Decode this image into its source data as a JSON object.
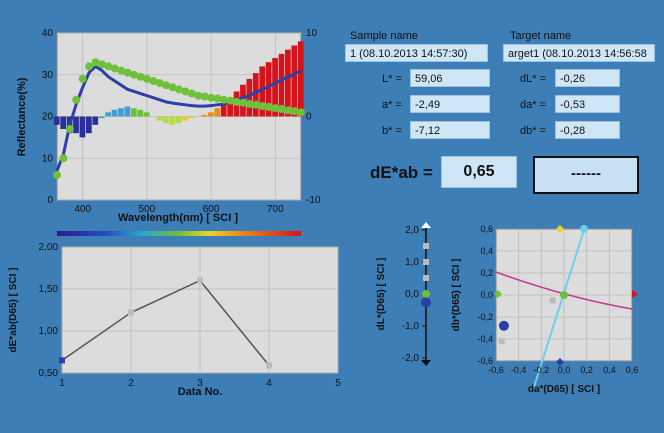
{
  "sample": {
    "name_label": "Sample name",
    "name_value": "1 (08.10.2013 14:57:30)"
  },
  "target": {
    "name_label": "Target name",
    "name_value": "arget1 (08.10.2013 14:56:58"
  },
  "metrics": [
    {
      "label": "L* =",
      "value": "59,06"
    },
    {
      "label": "a* =",
      "value": "-2,49"
    },
    {
      "label": "b* =",
      "value": "-7,12"
    },
    {
      "label": "dL* =",
      "value": "-0,26"
    },
    {
      "label": "da* =",
      "value": "-0,53"
    },
    {
      "label": "db* =",
      "value": "-0,28"
    }
  ],
  "de": {
    "label": "dE*ab =",
    "value": "0,65",
    "result": "------"
  },
  "colors": {
    "background": "#3d7eb6",
    "plot_bg": "#dcdcdc",
    "panel_bg": "#c9e0f2",
    "trend_line": "#555555",
    "sample_curve": "#6fc03b",
    "target_curve": "#2a3fa8"
  },
  "chart_data": [
    {
      "type": "line",
      "name": "reflectance",
      "xlabel": "Wavelength(nm) [ SCI ]",
      "ylabel": "Reflectance(%)",
      "xlim": [
        360,
        740
      ],
      "ylim": [
        0,
        40
      ],
      "y2lim": [
        -10,
        10
      ],
      "xticks": [
        400,
        500,
        600,
        700
      ],
      "yticks": [
        0,
        10,
        20,
        30,
        40
      ],
      "y2ticks": [
        -10,
        0,
        10
      ],
      "legend": "none",
      "grid": true,
      "series": [
        {
          "x": [
            360,
            370,
            380,
            390,
            400,
            410,
            420,
            430,
            440,
            450,
            460,
            470,
            480,
            490,
            500,
            510,
            520,
            530,
            540,
            550,
            560,
            570,
            580,
            590,
            600,
            610,
            620,
            630,
            640,
            650,
            660,
            670,
            680,
            690,
            700,
            710,
            720,
            730,
            740
          ],
          "values": [
            6,
            10,
            17,
            24,
            29,
            32,
            33,
            32.5,
            32,
            31.5,
            31,
            30.5,
            30,
            29.5,
            29,
            28.5,
            28,
            27.5,
            27,
            26.5,
            26,
            25.5,
            25,
            24.8,
            24.5,
            24.3,
            24,
            23.8,
            23.5,
            23.3,
            23,
            22.8,
            22.5,
            22.3,
            22,
            21.8,
            21.5,
            21.3,
            21
          ]
        },
        {
          "x": [
            360,
            370,
            380,
            390,
            400,
            410,
            420,
            430,
            440,
            450,
            460,
            470,
            480,
            490,
            500,
            510,
            520,
            530,
            540,
            550,
            560,
            570,
            580,
            590,
            600,
            610,
            620,
            630,
            640,
            650,
            660,
            670,
            680,
            690,
            700,
            710,
            720,
            730,
            740
          ],
          "values": [
            7,
            11,
            18,
            23,
            27,
            30.5,
            32,
            31,
            29.5,
            28.5,
            27.5,
            26.5,
            26,
            25.5,
            25,
            24.5,
            24,
            23.5,
            23.2,
            23,
            22.8,
            22.6,
            22.5,
            22.5,
            22.6,
            22.8,
            23,
            23.5,
            24,
            24.5,
            25,
            25.8,
            26.5,
            27.2,
            28,
            28.8,
            29.5,
            30.2,
            31
          ]
        }
      ],
      "diff_bars": {
        "x": [
          360,
          370,
          380,
          390,
          400,
          410,
          420,
          430,
          440,
          450,
          460,
          470,
          480,
          490,
          500,
          510,
          520,
          530,
          540,
          550,
          560,
          570,
          580,
          590,
          600,
          610,
          620,
          630,
          640,
          650,
          660,
          670,
          680,
          690,
          700,
          710,
          720,
          730,
          740
        ],
        "values": [
          -1,
          -1.5,
          -2,
          -2,
          -2.5,
          -2,
          -1,
          -0.2,
          0.5,
          0.8,
          1,
          1.2,
          1,
          0.8,
          0.5,
          0,
          -0.5,
          -0.8,
          -1,
          -0.8,
          -0.5,
          -0.2,
          0,
          0.2,
          0.5,
          1,
          1.5,
          2.2,
          3,
          3.8,
          4.5,
          5.2,
          6,
          6.5,
          7,
          7.5,
          8,
          8.5,
          9
        ]
      }
    },
    {
      "type": "line",
      "name": "dE-history",
      "xlabel": "Data No.",
      "ylabel": "dE*ab(D65) [ SCI ]",
      "xlim": [
        1,
        5
      ],
      "ylim": [
        0.5,
        2.0
      ],
      "xticks": [
        "1",
        "2",
        "3",
        "4",
        "5"
      ],
      "yticks": [
        "0,50",
        "1,00",
        "1,50",
        "2,00"
      ],
      "grid": true,
      "x": [
        1,
        2,
        3,
        4
      ],
      "values": [
        0.65,
        1.22,
        1.6,
        0.59
      ]
    },
    {
      "type": "scatter",
      "name": "dL-axis",
      "ylabel": "dL*(D65) [ SCI ]",
      "ylim": [
        -2.0,
        2.0
      ],
      "yticks": [
        "2,0",
        "1,0",
        "0,0",
        "-1,0",
        "-2,0"
      ],
      "values": [
        -0.26
      ]
    },
    {
      "type": "scatter",
      "name": "dadb-plane",
      "xlabel": "da*(D65) [ SCI ]",
      "ylabel": "db*(D65) [ SCI ]",
      "xlim": [
        -0.6,
        0.6
      ],
      "ylim": [
        -0.6,
        0.6
      ],
      "xticks": [
        "-0,6",
        "-0,4",
        "-0,2",
        "0,0",
        "0,2",
        "0,4",
        "0,6"
      ],
      "yticks": [
        "0,6",
        "0,4",
        "0,2",
        "0,0",
        "-0,2",
        "-0,4",
        "-0,6"
      ],
      "grid": true,
      "points": [
        {
          "x": -0.53,
          "y": -0.28
        },
        {
          "x": -0.1,
          "y": -0.05
        }
      ]
    }
  ]
}
